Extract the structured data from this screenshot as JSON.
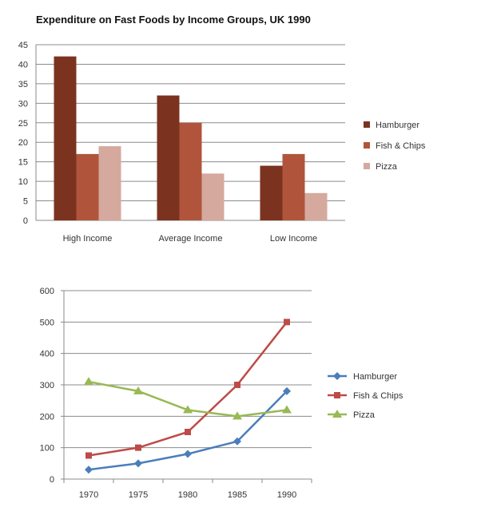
{
  "chart_data": [
    {
      "type": "bar",
      "title": "Expenditure on Fast Foods by Income Groups, UK 1990",
      "xlabel": "",
      "ylabel": "",
      "categories": [
        "High Income",
        "Average Income",
        "Low Income"
      ],
      "series": [
        {
          "name": "Hamburger",
          "values": [
            42,
            32,
            14
          ],
          "color": "#7b3320"
        },
        {
          "name": "Fish & Chips",
          "values": [
            17,
            25,
            17
          ],
          "color": "#b0553b"
        },
        {
          "name": "Pizza",
          "values": [
            19,
            12,
            7
          ],
          "color": "#d5a99d"
        }
      ],
      "ylim": [
        0,
        45
      ],
      "yticks": [
        "0",
        "5",
        "10",
        "15",
        "20",
        "25",
        "30",
        "35",
        "40",
        "45"
      ],
      "grid": true,
      "legend": "right"
    },
    {
      "type": "line",
      "title": "",
      "xlabel": "",
      "ylabel": "",
      "x": [
        "1970",
        "1975",
        "1980",
        "1985",
        "1990"
      ],
      "series": [
        {
          "name": "Hamburger",
          "values": [
            30,
            50,
            80,
            120,
            280
          ],
          "color": "#4a7ebb",
          "marker": "diamond"
        },
        {
          "name": "Fish & Chips",
          "values": [
            75,
            100,
            150,
            300,
            500
          ],
          "color": "#be4b48",
          "marker": "square"
        },
        {
          "name": "Pizza",
          "values": [
            310,
            280,
            220,
            200,
            220
          ],
          "color": "#98b954",
          "marker": "triangle"
        }
      ],
      "ylim": [
        0,
        600
      ],
      "yticks": [
        "0",
        "100",
        "200",
        "300",
        "400",
        "500",
        "600"
      ],
      "grid": true,
      "legend": "right"
    }
  ]
}
